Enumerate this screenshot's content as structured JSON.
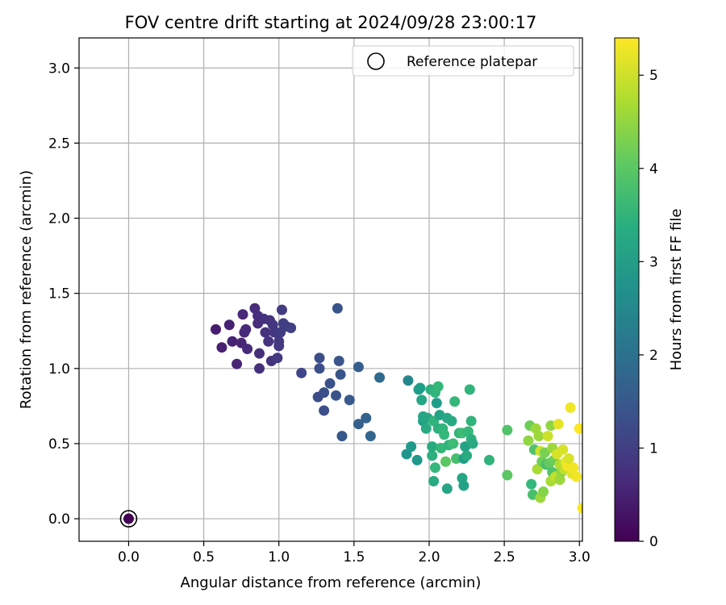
{
  "chart_data": {
    "type": "scatter",
    "title": "FOV centre drift starting at 2024/09/28 23:00:17",
    "xlabel": "Angular distance from reference (arcmin)",
    "ylabel": "Rotation from reference (arcmin)",
    "xlim": [
      -0.33,
      3.02
    ],
    "ylim": [
      -0.15,
      3.2
    ],
    "x_ticks": [
      0.0,
      0.5,
      1.0,
      1.5,
      2.0,
      2.5,
      3.0
    ],
    "y_ticks": [
      0.0,
      0.5,
      1.0,
      1.5,
      2.0,
      2.5,
      3.0
    ],
    "x_tick_labels": [
      "0.0",
      "0.5",
      "1.0",
      "1.5",
      "2.0",
      "2.5",
      "3.0"
    ],
    "y_tick_labels": [
      "0.0",
      "0.5",
      "1.0",
      "1.5",
      "2.0",
      "2.5",
      "3.0"
    ],
    "grid": true,
    "legend": {
      "location": "upper right",
      "entries": [
        "Reference platepar"
      ]
    },
    "colorbar": {
      "label": "Hours from first FF file",
      "range": [
        0,
        5.4
      ],
      "ticks": [
        0,
        1,
        2,
        3,
        4,
        5
      ],
      "tick_labels": [
        "0",
        "1",
        "2",
        "3",
        "4",
        "5"
      ],
      "colormap": "viridis"
    },
    "reference": {
      "x": 0.0,
      "y": 0.0
    },
    "series": [
      {
        "x_y_h": [
          [
            0.0,
            0.0,
            0.0
          ],
          [
            0.58,
            1.26,
            0.45
          ],
          [
            0.62,
            1.14,
            0.47
          ],
          [
            0.67,
            1.29,
            0.5
          ],
          [
            0.69,
            1.18,
            0.52
          ],
          [
            0.72,
            1.03,
            0.55
          ],
          [
            0.75,
            1.17,
            0.58
          ],
          [
            0.76,
            1.36,
            0.6
          ],
          [
            0.77,
            1.24,
            0.62
          ],
          [
            0.78,
            1.26,
            0.64
          ],
          [
            0.79,
            1.13,
            0.66
          ],
          [
            0.84,
            1.4,
            0.68
          ],
          [
            0.86,
            1.3,
            0.7
          ],
          [
            0.86,
            1.35,
            0.7
          ],
          [
            0.87,
            1.1,
            0.72
          ],
          [
            0.87,
            1.0,
            0.74
          ],
          [
            0.9,
            1.33,
            0.76
          ],
          [
            0.91,
            1.24,
            0.78
          ],
          [
            0.93,
            1.18,
            0.8
          ],
          [
            0.94,
            1.32,
            0.8
          ],
          [
            0.95,
            1.05,
            0.82
          ],
          [
            0.96,
            1.29,
            0.84
          ],
          [
            0.97,
            1.24,
            0.86
          ],
          [
            0.98,
            1.24,
            0.88
          ],
          [
            0.99,
            1.07,
            0.9
          ],
          [
            1.0,
            1.18,
            0.9
          ],
          [
            1.0,
            1.15,
            0.92
          ],
          [
            1.01,
            1.24,
            0.94
          ],
          [
            1.02,
            1.39,
            0.96
          ],
          [
            1.03,
            1.3,
            0.98
          ],
          [
            1.05,
            1.28,
            1.0
          ],
          [
            1.08,
            1.27,
            1.02
          ],
          [
            1.15,
            0.97,
            1.15
          ],
          [
            1.26,
            0.81,
            1.25
          ],
          [
            1.27,
            1.07,
            1.27
          ],
          [
            1.27,
            1.0,
            1.29
          ],
          [
            1.3,
            0.72,
            1.3
          ],
          [
            1.3,
            0.84,
            1.32
          ],
          [
            1.34,
            0.9,
            1.35
          ],
          [
            1.38,
            0.82,
            1.38
          ],
          [
            1.39,
            1.4,
            1.4
          ],
          [
            1.4,
            1.05,
            1.42
          ],
          [
            1.41,
            0.96,
            1.44
          ],
          [
            1.42,
            0.55,
            1.46
          ],
          [
            1.47,
            0.79,
            1.5
          ],
          [
            1.53,
            1.01,
            1.6
          ],
          [
            1.53,
            0.63,
            1.62
          ],
          [
            1.58,
            0.67,
            1.7
          ],
          [
            1.61,
            0.55,
            1.75
          ],
          [
            1.67,
            0.94,
            1.85
          ],
          [
            1.85,
            0.43,
            2.8
          ],
          [
            1.86,
            0.92,
            2.5
          ],
          [
            1.88,
            0.48,
            2.9
          ],
          [
            1.92,
            0.39,
            2.9
          ],
          [
            1.93,
            0.86,
            3.0
          ],
          [
            1.94,
            0.87,
            3.0
          ],
          [
            1.95,
            0.79,
            3.2
          ],
          [
            1.96,
            0.65,
            3.1
          ],
          [
            1.96,
            0.68,
            3.2
          ],
          [
            1.98,
            0.6,
            3.3
          ],
          [
            1.99,
            0.67,
            3.2
          ],
          [
            2.01,
            0.86,
            3.4
          ],
          [
            2.02,
            0.42,
            3.4
          ],
          [
            2.02,
            0.48,
            3.3
          ],
          [
            2.03,
            0.25,
            3.3
          ],
          [
            2.03,
            0.65,
            3.5
          ],
          [
            2.04,
            0.34,
            3.6
          ],
          [
            2.04,
            0.84,
            3.5
          ],
          [
            2.05,
            0.77,
            3.0
          ],
          [
            2.06,
            0.88,
            3.6
          ],
          [
            2.06,
            0.6,
            3.4
          ],
          [
            2.07,
            0.69,
            3.1
          ],
          [
            2.08,
            0.47,
            3.6
          ],
          [
            2.09,
            0.6,
            3.5
          ],
          [
            2.1,
            0.56,
            3.6
          ],
          [
            2.11,
            0.38,
            4.0
          ],
          [
            2.12,
            0.2,
            3.2
          ],
          [
            2.12,
            0.67,
            3.2
          ],
          [
            2.13,
            0.49,
            3.5
          ],
          [
            2.15,
            0.65,
            3.3
          ],
          [
            2.16,
            0.5,
            3.7
          ],
          [
            2.17,
            0.78,
            3.6
          ],
          [
            2.18,
            0.4,
            3.8
          ],
          [
            2.2,
            0.57,
            3.5
          ],
          [
            2.22,
            0.57,
            3.7
          ],
          [
            2.22,
            0.27,
            3.2
          ],
          [
            2.23,
            0.22,
            3.1
          ],
          [
            2.23,
            0.4,
            3.0
          ],
          [
            2.24,
            0.48,
            3.1
          ],
          [
            2.25,
            0.42,
            3.3
          ],
          [
            2.26,
            0.58,
            3.6
          ],
          [
            2.27,
            0.86,
            3.5
          ],
          [
            2.28,
            0.53,
            3.4
          ],
          [
            2.28,
            0.65,
            3.5
          ],
          [
            2.29,
            0.5,
            3.3
          ],
          [
            2.4,
            0.39,
            3.5
          ],
          [
            2.52,
            0.59,
            3.9
          ],
          [
            2.52,
            0.29,
            4.0
          ],
          [
            2.66,
            0.52,
            4.5
          ],
          [
            2.67,
            0.62,
            4.2
          ],
          [
            2.68,
            0.23,
            3.6
          ],
          [
            2.69,
            0.16,
            3.8
          ],
          [
            2.7,
            0.46,
            3.9
          ],
          [
            2.71,
            0.6,
            4.6
          ],
          [
            2.72,
            0.33,
            4.7
          ],
          [
            2.73,
            0.55,
            4.6
          ],
          [
            2.74,
            0.14,
            4.6
          ],
          [
            2.74,
            0.45,
            5.0
          ],
          [
            2.75,
            0.38,
            4.2
          ],
          [
            2.76,
            0.18,
            4.4
          ],
          [
            2.77,
            0.44,
            4.3
          ],
          [
            2.78,
            0.36,
            3.8
          ],
          [
            2.79,
            0.55,
            5.0
          ],
          [
            2.8,
            0.37,
            4.1
          ],
          [
            2.81,
            0.25,
            4.7
          ],
          [
            2.81,
            0.62,
            4.5
          ],
          [
            2.82,
            0.31,
            3.9
          ],
          [
            2.82,
            0.47,
            4.6
          ],
          [
            2.83,
            0.39,
            4.2
          ],
          [
            2.84,
            0.28,
            4.9
          ],
          [
            2.85,
            0.43,
            5.1
          ],
          [
            2.86,
            0.63,
            5.2
          ],
          [
            2.87,
            0.36,
            4.8
          ],
          [
            2.87,
            0.26,
            4.6
          ],
          [
            2.88,
            0.31,
            4.5
          ],
          [
            2.89,
            0.46,
            5.1
          ],
          [
            2.9,
            0.33,
            4.9
          ],
          [
            2.91,
            0.38,
            5.2
          ],
          [
            2.92,
            0.35,
            5.3
          ],
          [
            2.93,
            0.4,
            5.1
          ],
          [
            2.94,
            0.74,
            5.3
          ],
          [
            2.95,
            0.3,
            5.2
          ],
          [
            2.96,
            0.34,
            5.3
          ],
          [
            2.98,
            0.28,
            5.3
          ],
          [
            3.0,
            0.6,
            5.4
          ],
          [
            3.02,
            0.07,
            5.4
          ]
        ]
      }
    ]
  }
}
